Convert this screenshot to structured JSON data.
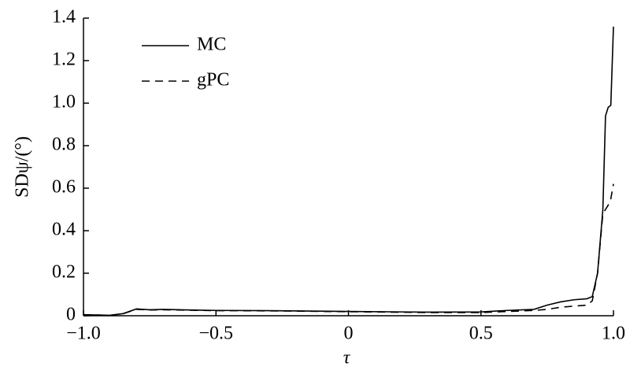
{
  "chart_data": {
    "type": "line",
    "xlabel": "τ",
    "ylabel": "SDψ/(°)",
    "x": [
      -1.0,
      -0.9,
      -0.85,
      -0.8,
      -0.75,
      -0.7,
      -0.6,
      -0.5,
      -0.3,
      0,
      0.3,
      0.5,
      0.6,
      0.7,
      0.75,
      0.8,
      0.85,
      0.9,
      0.92,
      0.94,
      0.96,
      0.97,
      0.98,
      0.99,
      1.0
    ],
    "series": [
      {
        "name": "MC",
        "color": "#000000",
        "dash": false,
        "values": [
          0.005,
          0.002,
          0.01,
          0.032,
          0.028,
          0.03,
          0.027,
          0.025,
          0.024,
          0.02,
          0.017,
          0.018,
          0.025,
          0.03,
          0.05,
          0.065,
          0.075,
          0.08,
          0.09,
          0.2,
          0.5,
          0.94,
          0.98,
          0.99,
          1.36
        ]
      },
      {
        "name": "gPC",
        "color": "#000000",
        "dash": true,
        "values": [
          0.005,
          0.002,
          0.01,
          0.03,
          0.027,
          0.028,
          0.026,
          0.024,
          0.023,
          0.019,
          0.015,
          0.015,
          0.02,
          0.025,
          0.03,
          0.04,
          0.045,
          0.05,
          0.07,
          0.2,
          0.48,
          0.5,
          0.52,
          0.55,
          0.62
        ]
      }
    ],
    "xlim": [
      -1.0,
      1.0
    ],
    "xticks": [
      {
        "value": -1.0,
        "label": "−1.0"
      },
      {
        "value": -0.5,
        "label": "−0.5"
      },
      0,
      0.5,
      {
        "value": 1.0,
        "label": "1.0"
      }
    ],
    "ylim": [
      0,
      1.4
    ],
    "yticks": [
      0,
      0.2,
      0.4,
      0.6,
      0.8,
      {
        "value": 1.0,
        "label": "1.0"
      },
      1.2,
      1.4
    ],
    "grid": false,
    "legend": "upper left"
  }
}
